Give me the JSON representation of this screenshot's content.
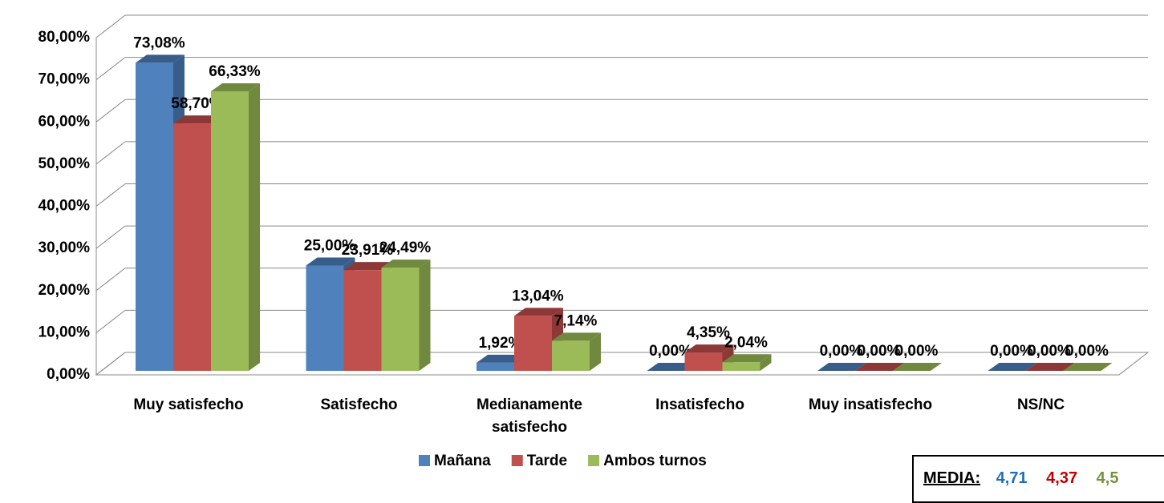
{
  "chart_data": {
    "type": "bar3d",
    "categories": [
      "Muy satisfecho",
      "Satisfecho",
      "Medianamente satisfecho",
      "Insatisfecho",
      "Muy insatisfecho",
      "NS/NC"
    ],
    "series": [
      {
        "name": "Mañana",
        "color": "#4f81bd",
        "side": "#385d8a",
        "values": [
          73.08,
          25,
          1.92,
          0,
          0,
          0
        ],
        "value_labels": [
          "73,08%",
          "25,00%",
          "1,92%",
          "0,00%",
          "0,00%",
          "0,00%"
        ]
      },
      {
        "name": "Tarde",
        "color": "#c0504d",
        "side": "#8c3836",
        "values": [
          58.7,
          23.91,
          13.04,
          4.35,
          0,
          0
        ],
        "value_labels": [
          "58,70%",
          "23,91%",
          "13,04%",
          "4,35%",
          "0,00%",
          "0,00%"
        ]
      },
      {
        "name": "Ambos turnos",
        "color": "#9bbb59",
        "side": "#71893f",
        "values": [
          66.33,
          24.49,
          7.14,
          2.04,
          0,
          0
        ],
        "value_labels": [
          "66,33%",
          "24,49%",
          "7,14%",
          "2,04%",
          "0,00%",
          "0,00%"
        ]
      }
    ],
    "ylim": [
      0,
      80
    ],
    "yticks": [
      {
        "value": 0,
        "label": "0,00%"
      },
      {
        "value": 10,
        "label": "10,00%"
      },
      {
        "value": 20,
        "label": "20,00%"
      },
      {
        "value": 30,
        "label": "30,00%"
      },
      {
        "value": 40,
        "label": "40,00%"
      },
      {
        "value": 50,
        "label": "50,00%"
      },
      {
        "value": 60,
        "label": "60,00%"
      },
      {
        "value": 70,
        "label": "70,00%"
      },
      {
        "value": 80,
        "label": "80,00%"
      }
    ],
    "grid": true
  },
  "media": {
    "label": "MEDIA:",
    "values": [
      "4,71",
      "4,37",
      "4,5"
    ]
  }
}
